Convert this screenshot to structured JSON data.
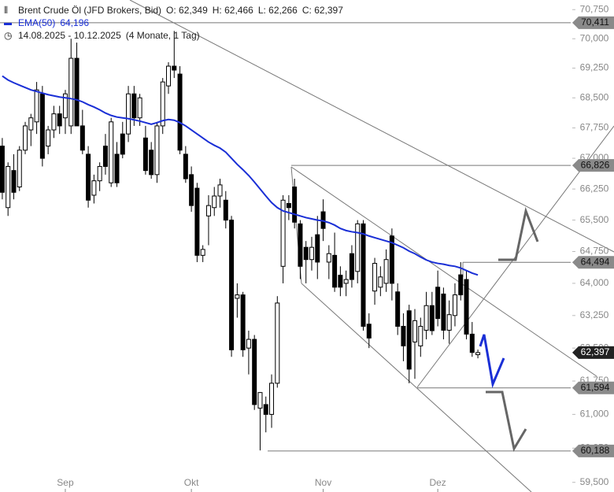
{
  "header": {
    "title": "Brent Crude Öl (JFD Brokers, Bid)",
    "ohlc": [
      "O: 62,349",
      "H: 62,466",
      "L: 62,266",
      "C: 62,397"
    ],
    "ema_value": "64,196",
    "date_range": "14.08.2025 - 10.12.2025",
    "period": "(4 Monate, 1 Tag)"
  },
  "chart_data": {
    "type": "candlestick",
    "log_scale": true,
    "xlim": [
      -0.4,
      99.2
    ],
    "xticks": [
      {
        "value": 11,
        "label": "Sep"
      },
      {
        "value": 33,
        "label": "Okt"
      },
      {
        "value": 56,
        "label": "Nov"
      },
      {
        "value": 76,
        "label": "Dez"
      }
    ],
    "ylim": [
      59.29,
      71.0
    ],
    "yticks": [
      {
        "value": 70.75,
        "label": "70,750"
      },
      {
        "value": 70,
        "label": "70,000"
      },
      {
        "value": 69.25,
        "label": "69,250"
      },
      {
        "value": 68.5,
        "label": "68,500"
      },
      {
        "value": 67.75,
        "label": "67,750"
      },
      {
        "value": 67,
        "label": "67,000"
      },
      {
        "value": 66.25,
        "label": "66,250"
      },
      {
        "value": 65.5,
        "label": "65,500"
      },
      {
        "value": 64.75,
        "label": "64,750"
      },
      {
        "value": 64,
        "label": "64,000"
      },
      {
        "value": 63.25,
        "label": "63,250"
      },
      {
        "value": 62.5,
        "label": "62,500"
      },
      {
        "value": 61.75,
        "label": "61,750"
      },
      {
        "value": 61,
        "label": "61,000"
      },
      {
        "value": 60.25,
        "label": "60,250"
      },
      {
        "value": 59.5,
        "label": "59,500"
      }
    ],
    "open": [
      67.3,
      65.8,
      66.7,
      66.3,
      67.2,
      67.7,
      67.9,
      68.6,
      67.3,
      67.7,
      68.1,
      68.0,
      67.8,
      69.5,
      67.8,
      67.1,
      66.1,
      66.45,
      67.3,
      66.4,
      67.1,
      67.6,
      67.6,
      68.6,
      68.0,
      67.5,
      67.2,
      66.6,
      67.8,
      68.8,
      69.3,
      69.1,
      67.1,
      66.6,
      66.27,
      64.66,
      65.6,
      65.8,
      66.08,
      65.98,
      65.5,
      63.65,
      63.73,
      62.5,
      62.7,
      61.14,
      61.22,
      61.0,
      61.7,
      64.4,
      65.9,
      66.3,
      65.41,
      64.85,
      64.56,
      65.15,
      65.7,
      64.5,
      64.66,
      64.19,
      64.0,
      64.7,
      64.28,
      65.41,
      63.05,
      63.82,
      63.91,
      64.0,
      65.12,
      63.8,
      63.0,
      63.36,
      62.64,
      62.55,
      62.91,
      63.48,
      63.91,
      63.75,
      62.91,
      63.25,
      64.2,
      64.09,
      62.82,
      62.349
    ],
    "high": [
      67.5,
      66.9,
      67.1,
      67.3,
      67.9,
      68.1,
      68.9,
      68.8,
      67.8,
      68.3,
      68.3,
      68.7,
      70.0,
      69.9,
      68.2,
      67.3,
      66.6,
      66.9,
      67.6,
      68.0,
      67.4,
      67.9,
      68.8,
      68.8,
      68.6,
      67.8,
      67.4,
      67.9,
      69.0,
      69.4,
      70.2,
      69.3,
      67.3,
      66.8,
      66.4,
      64.9,
      66.1,
      66.3,
      66.5,
      66.2,
      65.6,
      64.0,
      63.8,
      62.9,
      62.8,
      61.5,
      61.4,
      61.9,
      63.7,
      66.1,
      66.1,
      66.5,
      65.5,
      65.0,
      65.1,
      65.6,
      66.0,
      64.9,
      65.2,
      64.4,
      64.3,
      64.9,
      65.5,
      65.5,
      63.3,
      64.6,
      64.4,
      64.8,
      65.3,
      64.0,
      63.3,
      63.5,
      63.4,
      63.2,
      63.8,
      63.8,
      64.3,
      63.9,
      63.6,
      64.0,
      64.5,
      64.3,
      63.1,
      62.466
    ],
    "low": [
      66.0,
      65.6,
      66.0,
      66.2,
      67.1,
      67.3,
      67.6,
      66.8,
      67.1,
      67.5,
      67.6,
      67.6,
      67.6,
      67.8,
      67.1,
      65.8,
      65.9,
      66.2,
      66.6,
      66.3,
      66.3,
      67.0,
      67.4,
      67.8,
      67.8,
      66.6,
      66.5,
      66.4,
      67.6,
      68.6,
      69.0,
      67.1,
      66.4,
      65.7,
      64.5,
      64.5,
      64.9,
      65.6,
      65.8,
      65.3,
      62.3,
      63.2,
      62.3,
      61.9,
      61.1,
      60.2,
      60.6,
      60.7,
      61.6,
      64.0,
      65.5,
      65.3,
      64.1,
      64.0,
      64.3,
      64.1,
      65.0,
      64.1,
      63.8,
      63.7,
      63.7,
      63.9,
      64.0,
      62.9,
      62.5,
      63.5,
      63.7,
      63.8,
      63.6,
      62.8,
      62.2,
      61.7,
      61.8,
      62.3,
      62.7,
      62.8,
      63.0,
      62.7,
      62.6,
      63.0,
      63.6,
      62.7,
      62.3,
      62.266
    ],
    "close": [
      66.17,
      66.8,
      66.17,
      67.2,
      67.8,
      68.0,
      68.7,
      67.0,
      67.7,
      68.1,
      67.8,
      68.6,
      69.5,
      67.8,
      67.2,
      65.98,
      66.45,
      66.8,
      66.8,
      67.9,
      66.4,
      67.1,
      68.6,
      68.0,
      68.5,
      66.7,
      66.6,
      67.8,
      68.9,
      69.3,
      69.2,
      67.2,
      66.5,
      65.85,
      64.66,
      64.8,
      65.85,
      66.08,
      66.35,
      65.5,
      62.46,
      63.73,
      62.46,
      62.7,
      61.22,
      61.49,
      61.0,
      61.7,
      63.54,
      65.98,
      65.8,
      65.45,
      64.4,
      64.56,
      64.85,
      64.5,
      65.3,
      64.7,
      63.91,
      63.91,
      64.09,
      64.09,
      65.41,
      63.0,
      62.73,
      64.47,
      64.15,
      64.56,
      64.0,
      63.0,
      62.55,
      62.02,
      63.13,
      63.0,
      63.48,
      62.9,
      63.18,
      62.91,
      63.27,
      63.73,
      63.73,
      62.82,
      62.4,
      62.397
    ],
    "series": [
      {
        "name": "EMA(50)",
        "color": "#1a2fd6",
        "values": [
          69.05,
          68.95,
          68.88,
          68.82,
          68.76,
          68.7,
          68.66,
          68.62,
          68.58,
          68.55,
          68.52,
          68.5,
          68.48,
          68.45,
          68.4,
          68.33,
          68.27,
          68.2,
          68.12,
          68.06,
          68.02,
          68.0,
          67.98,
          67.95,
          67.92,
          67.88,
          67.84,
          67.88,
          67.93,
          67.96,
          67.94,
          67.88,
          67.8,
          67.7,
          67.6,
          67.5,
          67.4,
          67.32,
          67.25,
          67.15,
          67.0,
          66.85,
          66.72,
          66.58,
          66.42,
          66.25,
          66.08,
          65.92,
          65.8,
          65.72,
          65.68,
          65.64,
          65.6,
          65.56,
          65.53,
          65.5,
          65.48,
          65.44,
          65.38,
          65.3,
          65.25,
          65.22,
          65.2,
          65.17,
          65.12,
          65.08,
          65.04,
          65.0,
          64.96,
          64.9,
          64.84,
          64.76,
          64.7,
          64.62,
          64.55,
          64.5,
          64.47,
          64.45,
          64.42,
          64.4,
          64.36,
          64.3,
          64.24,
          64.196
        ]
      }
    ],
    "levels": [
      {
        "value": 70.411,
        "label": "70,411"
      },
      {
        "value": 66.826,
        "label": "66,826"
      },
      {
        "value": 64.494,
        "label": "64,494"
      },
      {
        "value": 61.594,
        "label": "61,594"
      },
      {
        "value": 60.188,
        "label": "60,188"
      }
    ],
    "last_price": {
      "value": 62.397,
      "label": "62,397"
    }
  }
}
